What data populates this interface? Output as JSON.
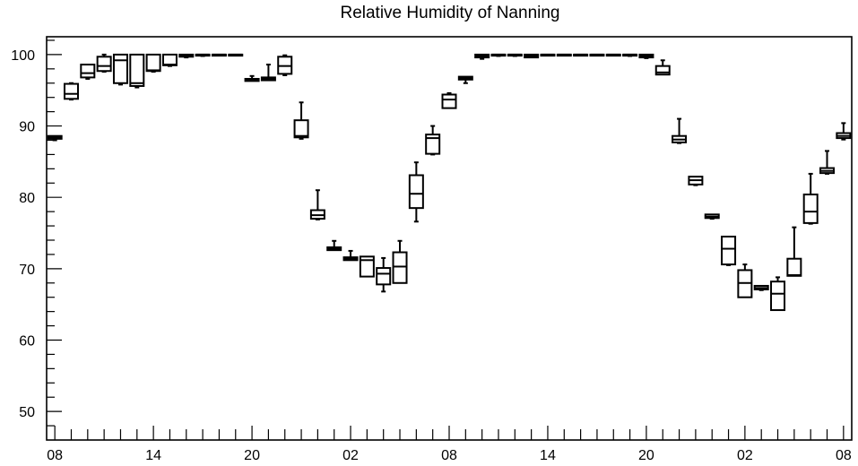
{
  "chart_data": {
    "type": "box",
    "title": "Relative Humidity of Nanning",
    "xlabel": "",
    "ylabel": "",
    "ylim": [
      46,
      102.5
    ],
    "y_ticks": [
      50,
      60,
      70,
      80,
      90,
      100
    ],
    "y_tick_labels": [
      "50",
      "60",
      "70",
      "80",
      "90",
      "100"
    ],
    "x_tick_labels": [
      "08",
      "14",
      "20",
      "02",
      "08",
      "14",
      "20",
      "02",
      "08"
    ],
    "x_tick_hours": [
      0,
      6,
      12,
      18,
      24,
      30,
      36,
      42,
      48
    ],
    "boxes": [
      {
        "hour": 0,
        "whisker_low": 88.0,
        "q1": 88.2,
        "median": 88.4,
        "q3": 88.6,
        "whisker_high": 88.6
      },
      {
        "hour": 1,
        "whisker_low": 93.7,
        "q1": 93.8,
        "median": 94.5,
        "q3": 95.9,
        "whisker_high": 96.0
      },
      {
        "hour": 2,
        "whisker_low": 96.6,
        "q1": 96.8,
        "median": 97.4,
        "q3": 98.6,
        "whisker_high": 98.6
      },
      {
        "hour": 3,
        "whisker_low": 97.6,
        "q1": 97.7,
        "median": 98.4,
        "q3": 99.7,
        "whisker_high": 100.0
      },
      {
        "hour": 4,
        "whisker_low": 95.8,
        "q1": 96.0,
        "median": 99.2,
        "q3": 100.0,
        "whisker_high": 100.0
      },
      {
        "hour": 5,
        "whisker_low": 95.4,
        "q1": 95.6,
        "median": 96.0,
        "q3": 100.0,
        "whisker_high": 100.0
      },
      {
        "hour": 6,
        "whisker_low": 97.6,
        "q1": 97.7,
        "median": 97.8,
        "q3": 100.0,
        "whisker_high": 100.0
      },
      {
        "hour": 7,
        "whisker_low": 98.4,
        "q1": 98.5,
        "median": 98.6,
        "q3": 100.0,
        "whisker_high": 100.0
      },
      {
        "hour": 8,
        "whisker_low": 99.6,
        "q1": 99.7,
        "median": 99.8,
        "q3": 100.0,
        "whisker_high": 100.0
      },
      {
        "hour": 9,
        "whisker_low": 99.8,
        "q1": 99.9,
        "median": 100.0,
        "q3": 100.0,
        "whisker_high": 100.0
      },
      {
        "hour": 10,
        "whisker_low": 99.9,
        "q1": 100.0,
        "median": 100.0,
        "q3": 100.0,
        "whisker_high": 100.0
      },
      {
        "hour": 11,
        "whisker_low": 99.9,
        "q1": 100.0,
        "median": 100.0,
        "q3": 100.0,
        "whisker_high": 100.0
      },
      {
        "hour": 12,
        "whisker_low": 96.3,
        "q1": 96.3,
        "median": 96.5,
        "q3": 96.6,
        "whisker_high": 97.0
      },
      {
        "hour": 13,
        "whisker_low": 96.4,
        "q1": 96.4,
        "median": 96.6,
        "q3": 96.8,
        "whisker_high": 98.6
      },
      {
        "hour": 14,
        "whisker_low": 97.1,
        "q1": 97.3,
        "median": 98.4,
        "q3": 99.7,
        "whisker_high": 99.9
      },
      {
        "hour": 15,
        "whisker_low": 88.2,
        "q1": 88.4,
        "median": 88.6,
        "q3": 90.8,
        "whisker_high": 93.3
      },
      {
        "hour": 16,
        "whisker_low": 76.9,
        "q1": 77.0,
        "median": 77.5,
        "q3": 78.2,
        "whisker_high": 81.0
      },
      {
        "hour": 17,
        "whisker_low": 72.6,
        "q1": 72.6,
        "median": 72.8,
        "q3": 73.0,
        "whisker_high": 73.9
      },
      {
        "hour": 18,
        "whisker_low": 71.2,
        "q1": 71.2,
        "median": 71.4,
        "q3": 71.6,
        "whisker_high": 72.5
      },
      {
        "hour": 19,
        "whisker_low": 68.9,
        "q1": 68.9,
        "median": 71.2,
        "q3": 71.7,
        "whisker_high": 71.7
      },
      {
        "hour": 20,
        "whisker_low": 66.8,
        "q1": 67.8,
        "median": 69.3,
        "q3": 70.1,
        "whisker_high": 71.5
      },
      {
        "hour": 21,
        "whisker_low": 68.0,
        "q1": 68.0,
        "median": 70.3,
        "q3": 72.3,
        "whisker_high": 73.9
      },
      {
        "hour": 22,
        "whisker_low": 76.6,
        "q1": 78.5,
        "median": 80.5,
        "q3": 83.1,
        "whisker_high": 84.9
      },
      {
        "hour": 23,
        "whisker_low": 86.0,
        "q1": 86.1,
        "median": 88.3,
        "q3": 88.8,
        "whisker_high": 90.0
      },
      {
        "hour": 24,
        "whisker_low": 92.5,
        "q1": 92.5,
        "median": 93.7,
        "q3": 94.4,
        "whisker_high": 94.6
      },
      {
        "hour": 25,
        "whisker_low": 96.0,
        "q1": 96.5,
        "median": 96.7,
        "q3": 96.9,
        "whisker_high": 96.9
      },
      {
        "hour": 26,
        "whisker_low": 99.4,
        "q1": 99.6,
        "median": 99.8,
        "q3": 100.0,
        "whisker_high": 100.0
      },
      {
        "hour": 27,
        "whisker_low": 99.8,
        "q1": 99.9,
        "median": 100.0,
        "q3": 100.0,
        "whisker_high": 100.0
      },
      {
        "hour": 28,
        "whisker_low": 99.8,
        "q1": 99.9,
        "median": 100.0,
        "q3": 100.0,
        "whisker_high": 100.0
      },
      {
        "hour": 29,
        "whisker_low": 99.6,
        "q1": 99.6,
        "median": 99.8,
        "q3": 100.0,
        "whisker_high": 100.0
      },
      {
        "hour": 30,
        "whisker_low": 100.0,
        "q1": 100.0,
        "median": 100.0,
        "q3": 100.0,
        "whisker_high": 100.0
      },
      {
        "hour": 31,
        "whisker_low": 100.0,
        "q1": 100.0,
        "median": 100.0,
        "q3": 100.0,
        "whisker_high": 100.0
      },
      {
        "hour": 32,
        "whisker_low": 100.0,
        "q1": 100.0,
        "median": 100.0,
        "q3": 100.0,
        "whisker_high": 100.0
      },
      {
        "hour": 33,
        "whisker_low": 100.0,
        "q1": 100.0,
        "median": 100.0,
        "q3": 100.0,
        "whisker_high": 100.0
      },
      {
        "hour": 34,
        "whisker_low": 100.0,
        "q1": 100.0,
        "median": 100.0,
        "q3": 100.0,
        "whisker_high": 100.0
      },
      {
        "hour": 35,
        "whisker_low": 99.8,
        "q1": 99.9,
        "median": 100.0,
        "q3": 100.0,
        "whisker_high": 100.0
      },
      {
        "hour": 36,
        "whisker_low": 99.5,
        "q1": 99.6,
        "median": 99.8,
        "q3": 100.0,
        "whisker_high": 100.0
      },
      {
        "hour": 37,
        "whisker_low": 97.2,
        "q1": 97.2,
        "median": 97.5,
        "q3": 98.4,
        "whisker_high": 99.2
      },
      {
        "hour": 38,
        "whisker_low": 87.6,
        "q1": 87.7,
        "median": 88.1,
        "q3": 88.6,
        "whisker_high": 91.0
      },
      {
        "hour": 39,
        "whisker_low": 81.7,
        "q1": 81.8,
        "median": 82.4,
        "q3": 82.9,
        "whisker_high": 82.9
      },
      {
        "hour": 40,
        "whisker_low": 77.0,
        "q1": 77.1,
        "median": 77.3,
        "q3": 77.6,
        "whisker_high": 77.6
      },
      {
        "hour": 41,
        "whisker_low": 70.5,
        "q1": 70.6,
        "median": 72.8,
        "q3": 74.5,
        "whisker_high": 74.5
      },
      {
        "hour": 42,
        "whisker_low": 66.0,
        "q1": 66.0,
        "median": 68.0,
        "q3": 69.8,
        "whisker_high": 70.6
      },
      {
        "hour": 43,
        "whisker_low": 67.0,
        "q1": 67.1,
        "median": 67.3,
        "q3": 67.6,
        "whisker_high": 67.6
      },
      {
        "hour": 44,
        "whisker_low": 64.2,
        "q1": 64.2,
        "median": 66.5,
        "q3": 68.2,
        "whisker_high": 68.8
      },
      {
        "hour": 45,
        "whisker_low": 69.0,
        "q1": 69.0,
        "median": 69.1,
        "q3": 71.4,
        "whisker_high": 75.8
      },
      {
        "hour": 46,
        "whisker_low": 76.3,
        "q1": 76.4,
        "median": 78.0,
        "q3": 80.4,
        "whisker_high": 83.3
      },
      {
        "hour": 47,
        "whisker_low": 83.3,
        "q1": 83.4,
        "median": 83.7,
        "q3": 84.1,
        "whisker_high": 86.5
      },
      {
        "hour": 48,
        "whisker_low": 88.1,
        "q1": 88.3,
        "median": 88.6,
        "q3": 89.0,
        "whisker_high": 90.4
      }
    ],
    "grid": false,
    "legend": "none"
  }
}
